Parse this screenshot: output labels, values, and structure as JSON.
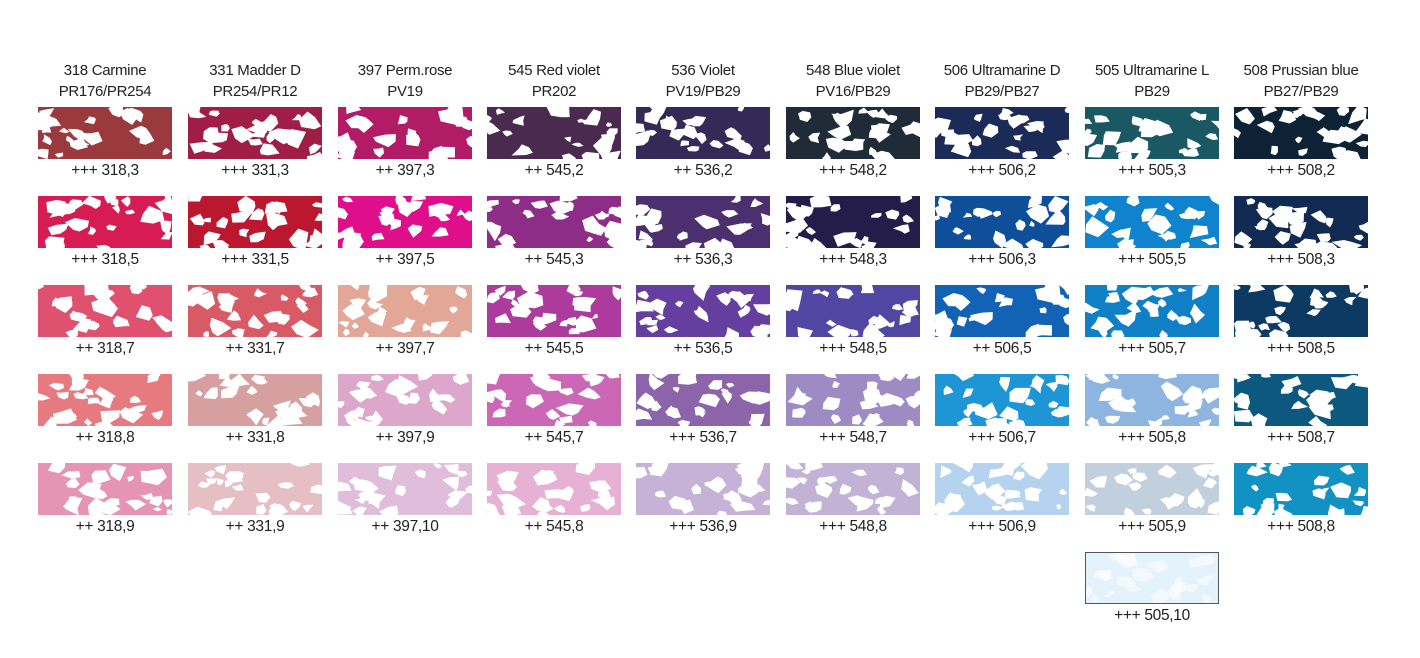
{
  "columns": [
    {
      "name": "318 Carmine",
      "pigments": "PR176/PR254",
      "swatches": [
        {
          "color": "#9a3a3f",
          "label": "+++ 318,3"
        },
        {
          "color": "#d61c52",
          "label": "+++ 318,5"
        },
        {
          "color": "#e0506f",
          "label": "++ 318,7"
        },
        {
          "color": "#e67a7f",
          "label": "++ 318,8"
        },
        {
          "color": "#e595b3",
          "label": "++ 318,9"
        }
      ]
    },
    {
      "name": "331 Madder D",
      "pigments": "PR254/PR12",
      "swatches": [
        {
          "color": "#a01d47",
          "label": "+++ 331,3"
        },
        {
          "color": "#bb1830",
          "label": "+++ 331,5"
        },
        {
          "color": "#d85a64",
          "label": "++ 331,7"
        },
        {
          "color": "#d5a09f",
          "label": "++ 331,8"
        },
        {
          "color": "#e5bfc4",
          "label": "++ 331,9"
        }
      ]
    },
    {
      "name": "397 Perm.rose",
      "pigments": "PV19",
      "swatches": [
        {
          "color": "#b21b65",
          "label": "++ 397,3"
        },
        {
          "color": "#df0e8b",
          "label": "++ 397,5"
        },
        {
          "color": "#e2a796",
          "label": "++ 397,7"
        },
        {
          "color": "#dca7cb",
          "label": "++ 397,9"
        },
        {
          "color": "#e0bddb",
          "label": "++ 397,10"
        }
      ]
    },
    {
      "name": "545 Red violet",
      "pigments": "PR202",
      "swatches": [
        {
          "color": "#4b2a50",
          "label": "++ 545,2"
        },
        {
          "color": "#8e2d88",
          "label": "++ 545,3"
        },
        {
          "color": "#ad3a9d",
          "label": "++ 545,5"
        },
        {
          "color": "#cb67b4",
          "label": "++ 545,7"
        },
        {
          "color": "#e6b1d4",
          "label": "++ 545,8"
        }
      ]
    },
    {
      "name": "536 Violet",
      "pigments": "PV19/PB29",
      "swatches": [
        {
          "color": "#332a57",
          "label": "++ 536,2"
        },
        {
          "color": "#4c2f6e",
          "label": "++ 536,3"
        },
        {
          "color": "#643fa0",
          "label": "++ 536,5"
        },
        {
          "color": "#8b64aa",
          "label": "+++ 536,7"
        },
        {
          "color": "#c6b2d6",
          "label": "+++ 536,9"
        }
      ]
    },
    {
      "name": "548 Blue violet",
      "pigments": "PV16/PB29",
      "swatches": [
        {
          "color": "#1f2b36",
          "label": "+++ 548,2"
        },
        {
          "color": "#241d4a",
          "label": "+++ 548,3"
        },
        {
          "color": "#5147a3",
          "label": "+++ 548,5"
        },
        {
          "color": "#9e8bc4",
          "label": "+++ 548,7"
        },
        {
          "color": "#c2b3d6",
          "label": "+++ 548,8"
        }
      ]
    },
    {
      "name": "506 Ultramarine D",
      "pigments": "PB29/PB27",
      "swatches": [
        {
          "color": "#1b2b57",
          "label": "+++ 506,2"
        },
        {
          "color": "#0f4f9a",
          "label": "+++ 506,3"
        },
        {
          "color": "#1263b6",
          "label": "++ 506,5"
        },
        {
          "color": "#1e96d6",
          "label": "+++ 506,7"
        },
        {
          "color": "#b5d3ee",
          "label": "+++ 506,9"
        }
      ]
    },
    {
      "name": "505 Ultramarine L",
      "pigments": "PB29",
      "swatches": [
        {
          "color": "#1a5864",
          "label": "+++ 505,3"
        },
        {
          "color": "#0f83cd",
          "label": "+++ 505,5"
        },
        {
          "color": "#0f7fc6",
          "label": "+++ 505,7"
        },
        {
          "color": "#8eb5df",
          "label": "+++ 505,8"
        },
        {
          "color": "#c2cfdc",
          "label": "+++ 505,9"
        },
        {
          "color": "#e4f2fb",
          "label": "+++ 505,10"
        }
      ]
    },
    {
      "name": "508 Prussian blue",
      "pigments": "PB27/PB29",
      "swatches": [
        {
          "color": "#0d2335",
          "label": "+++ 508,2"
        },
        {
          "color": "#102a52",
          "label": "+++ 508,3"
        },
        {
          "color": "#0d3a63",
          "label": "+++ 508,5"
        },
        {
          "color": "#0c587f",
          "label": "+++ 508,7"
        },
        {
          "color": "#1192c3",
          "label": "+++ 508,8"
        }
      ]
    }
  ]
}
